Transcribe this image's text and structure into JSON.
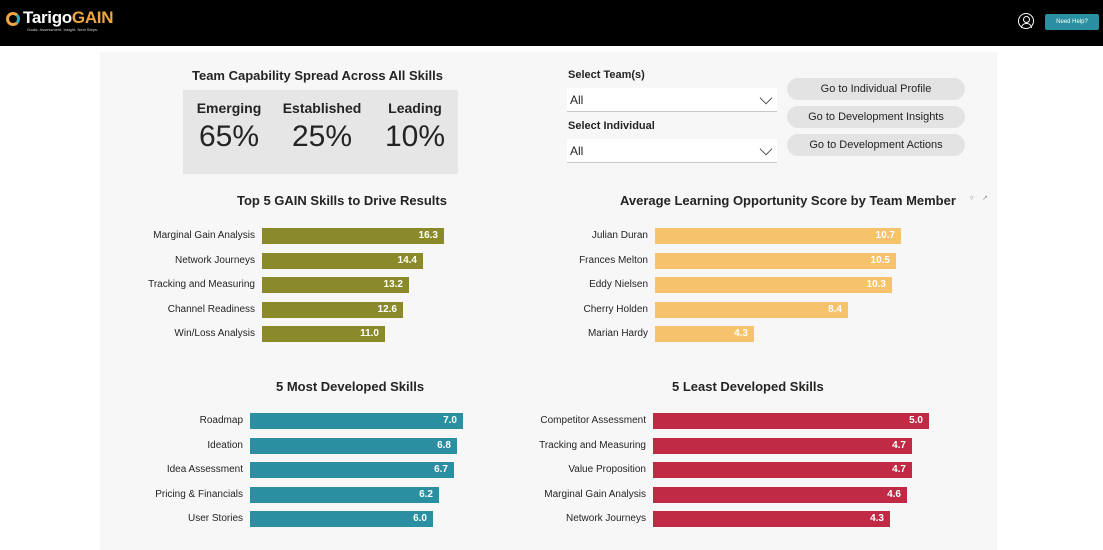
{
  "header": {
    "logo_main": "Tarigo",
    "logo_accent": "GAIN",
    "tagline": "Goals. Assessment. Insight. Next Steps.",
    "help_label": "Need Help?",
    "icons": {
      "logo": "tarigo-logo-icon",
      "user": "user-account-icon"
    }
  },
  "capability": {
    "title": "Team Capability Spread Across All Skills",
    "items": [
      {
        "label": "Emerging",
        "value": "65%"
      },
      {
        "label": "Established",
        "value": "25%"
      },
      {
        "label": "Leading",
        "value": "10%"
      }
    ]
  },
  "filters": {
    "team_label": "Select Team(s)",
    "team_value": "All",
    "individual_label": "Select Individual",
    "individual_value": "All"
  },
  "nav_buttons": [
    "Go to Individual Profile",
    "Go to Development Insights",
    "Go to Development Actions"
  ],
  "colors": {
    "olive": "#8a8a2b",
    "gold": "#f6c26b",
    "teal": "#2a8fa0",
    "crimson": "#c12a45"
  },
  "chart_data": [
    {
      "type": "bar",
      "orientation": "horizontal",
      "title": "Top 5 GAIN Skills to Drive Results",
      "categories": [
        "Marginal Gain Analysis",
        "Network Journeys",
        "Tracking and Measuring",
        "Channel Readiness",
        "Win/Loss Analysis"
      ],
      "values": [
        16.3,
        14.4,
        13.2,
        12.6,
        11.0
      ],
      "labels": [
        "16.3",
        "14.4",
        "13.2",
        "12.6",
        "11.0"
      ],
      "xlim": [
        0,
        16.3
      ]
    },
    {
      "type": "bar",
      "orientation": "horizontal",
      "title": "Average Learning Opportunity Score by Team Member",
      "categories": [
        "Julian Duran",
        "Frances Melton",
        "Eddy Nielsen",
        "Cherry Holden",
        "Marian Hardy"
      ],
      "values": [
        10.7,
        10.5,
        10.3,
        8.4,
        4.3
      ],
      "labels": [
        "10.7",
        "10.5",
        "10.3",
        "8.4",
        "4.3"
      ],
      "xlim": [
        0,
        10.7
      ]
    },
    {
      "type": "bar",
      "orientation": "horizontal",
      "title": "5 Most Developed Skills",
      "categories": [
        "Roadmap",
        "Ideation",
        "Idea Assessment",
        "Pricing & Financials",
        "User Stories"
      ],
      "values": [
        7.0,
        6.8,
        6.7,
        6.2,
        6.0
      ],
      "labels": [
        "7.0",
        "6.8",
        "6.7",
        "6.2",
        "6.0"
      ],
      "xlim": [
        0,
        7.0
      ]
    },
    {
      "type": "bar",
      "orientation": "horizontal",
      "title": "5 Least Developed Skills",
      "categories": [
        "Competitor Assessment",
        "Tracking and Measuring",
        "Value Proposition",
        "Marginal Gain Analysis",
        "Network Journeys"
      ],
      "values": [
        5.0,
        4.7,
        4.7,
        4.6,
        4.3
      ],
      "labels": [
        "5.0",
        "4.7",
        "4.7",
        "4.6",
        "4.3"
      ],
      "xlim": [
        0,
        5.0
      ]
    }
  ]
}
